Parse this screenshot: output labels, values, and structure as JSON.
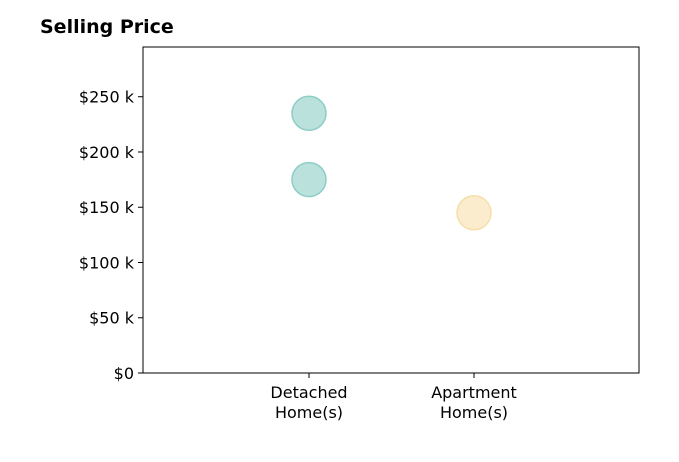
{
  "chart_data": {
    "type": "scatter",
    "title": "Selling Price",
    "xlabel": "",
    "ylabel": "",
    "categories": [
      [
        "Detached",
        "Home(s)"
      ],
      [
        "Apartment",
        "Home(s)"
      ]
    ],
    "y_tick_values": [
      0,
      50000,
      100000,
      150000,
      200000,
      250000
    ],
    "y_tick_labels": [
      "$0",
      "$50 k",
      "$100 k",
      "$150 k",
      "$200 k",
      "$250 k"
    ],
    "ylim": [
      0,
      295000
    ],
    "grid": false,
    "legend": "none",
    "series": [
      {
        "category_index": 0,
        "color": "#8ecdc6",
        "values": [
          235000,
          175000
        ]
      },
      {
        "category_index": 1,
        "color": "#f6dfaa",
        "values": [
          145000
        ]
      }
    ]
  }
}
